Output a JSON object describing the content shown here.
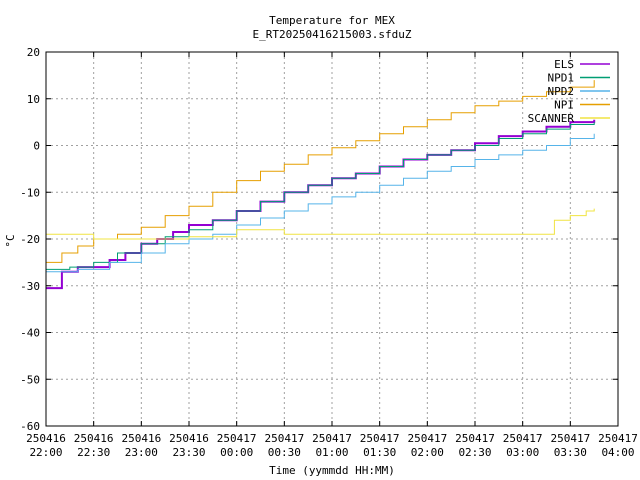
{
  "chart_data": {
    "type": "line",
    "title": "Temperature for MEX",
    "subtitle": "E_RT20250416215003.sfduZ",
    "xlabel": "Time (yymmdd HH:MM)",
    "ylabel": "°C",
    "ylim": [
      -60,
      20
    ],
    "yticks": [
      -60,
      -50,
      -40,
      -30,
      -20,
      -10,
      0,
      10,
      20
    ],
    "xlim": [
      "2025-04-16 22:00",
      "2025-04-17 04:00"
    ],
    "xticks": [
      {
        "t": "2025-04-16 22:00",
        "d": "250416",
        "h": "22:00"
      },
      {
        "t": "2025-04-16 22:30",
        "d": "250416",
        "h": "22:30"
      },
      {
        "t": "2025-04-16 23:00",
        "d": "250416",
        "h": "23:00"
      },
      {
        "t": "2025-04-16 23:30",
        "d": "250416",
        "h": "23:30"
      },
      {
        "t": "2025-04-17 00:00",
        "d": "250417",
        "h": "00:00"
      },
      {
        "t": "2025-04-17 00:30",
        "d": "250417",
        "h": "00:30"
      },
      {
        "t": "2025-04-17 01:00",
        "d": "250417",
        "h": "01:00"
      },
      {
        "t": "2025-04-17 01:30",
        "d": "250417",
        "h": "01:30"
      },
      {
        "t": "2025-04-17 02:00",
        "d": "250417",
        "h": "02:00"
      },
      {
        "t": "2025-04-17 02:30",
        "d": "250417",
        "h": "02:30"
      },
      {
        "t": "2025-04-17 03:00",
        "d": "250417",
        "h": "03:00"
      },
      {
        "t": "2025-04-17 03:30",
        "d": "250417",
        "h": "03:30"
      },
      {
        "t": "2025-04-17 04:00",
        "d": "250417",
        "h": "04:00"
      }
    ],
    "grid": true,
    "legend_position": "top-right",
    "series": [
      {
        "name": "ELS",
        "color": "#9400d3",
        "width": 2,
        "points": [
          [
            "2025-04-16 22:00",
            -30.5
          ],
          [
            "2025-04-16 22:10",
            -27
          ],
          [
            "2025-04-16 22:20",
            -26
          ],
          [
            "2025-04-16 22:40",
            -24.5
          ],
          [
            "2025-04-16 22:50",
            -23
          ],
          [
            "2025-04-16 23:00",
            -21
          ],
          [
            "2025-04-16 23:10",
            -20
          ],
          [
            "2025-04-16 23:20",
            -18.5
          ],
          [
            "2025-04-16 23:30",
            -17
          ],
          [
            "2025-04-16 23:45",
            -16
          ],
          [
            "2025-04-17 00:00",
            -14
          ],
          [
            "2025-04-17 00:15",
            -12
          ],
          [
            "2025-04-17 00:30",
            -10
          ],
          [
            "2025-04-17 00:45",
            -8.5
          ],
          [
            "2025-04-17 01:00",
            -7
          ],
          [
            "2025-04-17 01:15",
            -6
          ],
          [
            "2025-04-17 01:30",
            -4.5
          ],
          [
            "2025-04-17 01:45",
            -3
          ],
          [
            "2025-04-17 02:00",
            -2
          ],
          [
            "2025-04-17 02:15",
            -1
          ],
          [
            "2025-04-17 02:30",
            0.5
          ],
          [
            "2025-04-17 02:45",
            2
          ],
          [
            "2025-04-17 03:00",
            3
          ],
          [
            "2025-04-17 03:15",
            4
          ],
          [
            "2025-04-17 03:30",
            5
          ],
          [
            "2025-04-17 03:45",
            5.5
          ]
        ]
      },
      {
        "name": "NPD1",
        "color": "#009e73",
        "width": 1,
        "points": [
          [
            "2025-04-16 22:00",
            -26.5
          ],
          [
            "2025-04-16 22:15",
            -26
          ],
          [
            "2025-04-16 22:30",
            -25
          ],
          [
            "2025-04-16 22:45",
            -23
          ],
          [
            "2025-04-16 23:00",
            -21
          ],
          [
            "2025-04-16 23:15",
            -19.5
          ],
          [
            "2025-04-16 23:30",
            -18
          ],
          [
            "2025-04-16 23:45",
            -16
          ],
          [
            "2025-04-17 00:00",
            -14
          ],
          [
            "2025-04-17 00:15",
            -12
          ],
          [
            "2025-04-17 00:30",
            -10
          ],
          [
            "2025-04-17 00:45",
            -8.5
          ],
          [
            "2025-04-17 01:00",
            -7
          ],
          [
            "2025-04-17 01:15",
            -6
          ],
          [
            "2025-04-17 01:30",
            -4.5
          ],
          [
            "2025-04-17 01:45",
            -3
          ],
          [
            "2025-04-17 02:00",
            -2
          ],
          [
            "2025-04-17 02:15",
            -1
          ],
          [
            "2025-04-17 02:30",
            0
          ],
          [
            "2025-04-17 02:45",
            1.5
          ],
          [
            "2025-04-17 03:00",
            2.5
          ],
          [
            "2025-04-17 03:15",
            3.5
          ],
          [
            "2025-04-17 03:30",
            4.5
          ],
          [
            "2025-04-17 03:45",
            5
          ]
        ]
      },
      {
        "name": "NPD2",
        "color": "#56b4e9",
        "width": 1,
        "points": [
          [
            "2025-04-16 22:00",
            -27
          ],
          [
            "2025-04-16 22:20",
            -26.5
          ],
          [
            "2025-04-16 22:40",
            -25
          ],
          [
            "2025-04-16 23:00",
            -23
          ],
          [
            "2025-04-16 23:15",
            -21
          ],
          [
            "2025-04-16 23:30",
            -20
          ],
          [
            "2025-04-16 23:45",
            -19
          ],
          [
            "2025-04-17 00:00",
            -17
          ],
          [
            "2025-04-17 00:15",
            -15.5
          ],
          [
            "2025-04-17 00:30",
            -14
          ],
          [
            "2025-04-17 00:45",
            -12.5
          ],
          [
            "2025-04-17 01:00",
            -11
          ],
          [
            "2025-04-17 01:15",
            -10
          ],
          [
            "2025-04-17 01:30",
            -8.5
          ],
          [
            "2025-04-17 01:45",
            -7
          ],
          [
            "2025-04-17 02:00",
            -5.5
          ],
          [
            "2025-04-17 02:15",
            -4.5
          ],
          [
            "2025-04-17 02:30",
            -3
          ],
          [
            "2025-04-17 02:45",
            -2
          ],
          [
            "2025-04-17 03:00",
            -1
          ],
          [
            "2025-04-17 03:15",
            0
          ],
          [
            "2025-04-17 03:30",
            1.5
          ],
          [
            "2025-04-17 03:45",
            2.5
          ]
        ]
      },
      {
        "name": "NPI",
        "color": "#e69f00",
        "width": 1,
        "points": [
          [
            "2025-04-16 22:00",
            -25
          ],
          [
            "2025-04-16 22:10",
            -23
          ],
          [
            "2025-04-16 22:20",
            -21.5
          ],
          [
            "2025-04-16 22:30",
            -20
          ],
          [
            "2025-04-16 22:45",
            -19
          ],
          [
            "2025-04-16 23:00",
            -17.5
          ],
          [
            "2025-04-16 23:15",
            -15
          ],
          [
            "2025-04-16 23:30",
            -13
          ],
          [
            "2025-04-16 23:45",
            -10
          ],
          [
            "2025-04-17 00:00",
            -7.5
          ],
          [
            "2025-04-17 00:15",
            -5.5
          ],
          [
            "2025-04-17 00:30",
            -4
          ],
          [
            "2025-04-17 00:45",
            -2
          ],
          [
            "2025-04-17 01:00",
            -0.5
          ],
          [
            "2025-04-17 01:15",
            1
          ],
          [
            "2025-04-17 01:30",
            2.5
          ],
          [
            "2025-04-17 01:45",
            4
          ],
          [
            "2025-04-17 02:00",
            5.5
          ],
          [
            "2025-04-17 02:15",
            7
          ],
          [
            "2025-04-17 02:30",
            8.5
          ],
          [
            "2025-04-17 02:45",
            9.5
          ],
          [
            "2025-04-17 03:00",
            10.5
          ],
          [
            "2025-04-17 03:15",
            11.5
          ],
          [
            "2025-04-17 03:30",
            12.5
          ],
          [
            "2025-04-17 03:45",
            14
          ]
        ]
      },
      {
        "name": "SCANNER",
        "color": "#f0e442",
        "width": 1,
        "points": [
          [
            "2025-04-16 22:00",
            -19
          ],
          [
            "2025-04-16 22:15",
            -19
          ],
          [
            "2025-04-16 22:30",
            -20
          ],
          [
            "2025-04-16 23:00",
            -20
          ],
          [
            "2025-04-16 23:30",
            -19.5
          ],
          [
            "2025-04-17 00:00",
            -18
          ],
          [
            "2025-04-17 00:30",
            -19
          ],
          [
            "2025-04-17 01:00",
            -19
          ],
          [
            "2025-04-17 01:30",
            -19
          ],
          [
            "2025-04-17 02:00",
            -19
          ],
          [
            "2025-04-17 02:30",
            -19
          ],
          [
            "2025-04-17 03:00",
            -19
          ],
          [
            "2025-04-17 03:10",
            -19
          ],
          [
            "2025-04-17 03:20",
            -16
          ],
          [
            "2025-04-17 03:30",
            -15
          ],
          [
            "2025-04-17 03:40",
            -14
          ],
          [
            "2025-04-17 03:45",
            -13.5
          ]
        ]
      }
    ]
  }
}
